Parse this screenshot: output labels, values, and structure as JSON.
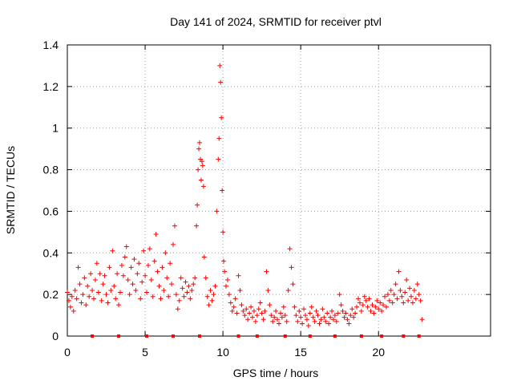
{
  "chart_data": {
    "type": "scatter",
    "title": "Day 141 of 2024, SRMTID for receiver ptvl",
    "xlabel": "GPS time / hours",
    "ylabel": "SRMTID / TECUs",
    "xlim": [
      0,
      27.2
    ],
    "ylim": [
      0,
      1.4
    ],
    "grid": true,
    "marker": "plus",
    "series_color": "#ff0000",
    "xticks": [
      0,
      5,
      10,
      15,
      20
    ],
    "yticks": [
      0,
      0.2,
      0.4,
      0.6,
      0.8,
      1,
      1.2,
      1.4
    ],
    "xtick_labels": [
      "0",
      "5",
      "10",
      "15",
      "20"
    ],
    "ytick_labels": [
      "0",
      "0.2",
      "0.4",
      "0.6",
      "0.8",
      "1",
      "1.2",
      "1.4"
    ],
    "series": [
      {
        "name": "SRMTID",
        "x": [
          0.0,
          0.1,
          0.2,
          0.3,
          0.4,
          0.5,
          0.6,
          0.7,
          0.8,
          0.9,
          1.0,
          1.1,
          1.2,
          1.3,
          1.4,
          1.5,
          1.6,
          1.7,
          1.8,
          1.9,
          2.0,
          2.1,
          2.2,
          2.3,
          2.4,
          2.5,
          2.6,
          2.7,
          2.8,
          2.9,
          3.0,
          3.1,
          3.2,
          3.3,
          3.4,
          3.5,
          3.6,
          3.7,
          3.8,
          3.9,
          4.0,
          4.1,
          4.2,
          4.3,
          4.4,
          4.5,
          4.6,
          4.7,
          4.8,
          4.9,
          5.0,
          5.1,
          5.2,
          5.3,
          5.4,
          5.5,
          5.6,
          5.7,
          5.8,
          5.9,
          6.0,
          6.1,
          6.2,
          6.3,
          6.4,
          6.5,
          6.6,
          6.7,
          6.8,
          6.9,
          7.0,
          7.1,
          7.2,
          7.3,
          7.4,
          7.5,
          7.6,
          7.7,
          7.8,
          7.9,
          8.0,
          8.1,
          8.2,
          8.3,
          8.35,
          8.4,
          8.45,
          8.5,
          8.55,
          8.6,
          8.65,
          8.7,
          8.75,
          8.8,
          8.9,
          9.0,
          9.1,
          9.2,
          9.3,
          9.4,
          9.5,
          9.6,
          9.7,
          9.75,
          9.8,
          9.85,
          9.9,
          9.95,
          10.0,
          10.05,
          10.1,
          10.2,
          10.3,
          10.4,
          10.5,
          10.6,
          10.7,
          10.8,
          10.9,
          11.0,
          11.1,
          11.2,
          11.3,
          11.4,
          11.5,
          11.6,
          11.7,
          11.8,
          11.9,
          12.0,
          12.1,
          12.2,
          12.3,
          12.4,
          12.5,
          12.6,
          12.7,
          12.8,
          12.9,
          13.0,
          13.1,
          13.2,
          13.3,
          13.4,
          13.5,
          13.6,
          13.7,
          13.8,
          13.9,
          14.0,
          14.1,
          14.2,
          14.3,
          14.4,
          14.5,
          14.6,
          14.7,
          14.8,
          14.9,
          15.0,
          15.1,
          15.2,
          15.3,
          15.4,
          15.5,
          15.6,
          15.7,
          15.8,
          15.9,
          16.0,
          16.1,
          16.2,
          16.3,
          16.4,
          16.5,
          16.6,
          16.7,
          16.8,
          16.9,
          17.0,
          17.1,
          17.2,
          17.3,
          17.4,
          17.5,
          17.6,
          17.7,
          17.8,
          17.9,
          18.0,
          18.1,
          18.2,
          18.3,
          18.4,
          18.5,
          18.6,
          18.7,
          18.8,
          18.9,
          19.0,
          19.1,
          19.2,
          19.3,
          19.4,
          19.5,
          19.6,
          19.7,
          19.8,
          19.9,
          20.0,
          20.1,
          20.2,
          20.3,
          20.4,
          20.5,
          20.6,
          20.7,
          20.8,
          20.9,
          21.0,
          21.1,
          21.2,
          21.3,
          21.4,
          21.5,
          21.6,
          21.7,
          21.8,
          21.9,
          22.0,
          22.1,
          22.2,
          22.3,
          22.4,
          22.5,
          22.6,
          22.7,
          22.8
        ],
        "y": [
          0.21,
          0.17,
          0.14,
          0.19,
          0.12,
          0.22,
          0.18,
          0.33,
          0.25,
          0.16,
          0.2,
          0.28,
          0.15,
          0.24,
          0.19,
          0.3,
          0.22,
          0.18,
          0.27,
          0.35,
          0.21,
          0.3,
          0.17,
          0.25,
          0.29,
          0.2,
          0.16,
          0.33,
          0.22,
          0.41,
          0.24,
          0.18,
          0.3,
          0.15,
          0.21,
          0.34,
          0.29,
          0.38,
          0.43,
          0.27,
          0.2,
          0.33,
          0.25,
          0.37,
          0.22,
          0.3,
          0.35,
          0.18,
          0.26,
          0.41,
          0.29,
          0.21,
          0.34,
          0.42,
          0.27,
          0.19,
          0.36,
          0.49,
          0.31,
          0.24,
          0.18,
          0.33,
          0.22,
          0.4,
          0.28,
          0.19,
          0.35,
          0.25,
          0.44,
          0.53,
          0.2,
          0.13,
          0.17,
          0.28,
          0.23,
          0.19,
          0.26,
          0.21,
          0.24,
          0.18,
          0.22,
          0.25,
          0.28,
          0.53,
          0.63,
          0.8,
          0.9,
          0.93,
          0.85,
          0.75,
          0.84,
          0.82,
          0.72,
          0.38,
          0.28,
          0.19,
          0.15,
          0.22,
          0.17,
          0.2,
          0.24,
          0.6,
          0.85,
          0.95,
          1.3,
          1.22,
          1.05,
          0.7,
          0.5,
          0.36,
          0.31,
          0.24,
          0.27,
          0.2,
          0.16,
          0.12,
          0.14,
          0.18,
          0.11,
          0.29,
          0.22,
          0.15,
          0.12,
          0.1,
          0.13,
          0.08,
          0.11,
          0.14,
          0.09,
          0.12,
          0.07,
          0.1,
          0.13,
          0.16,
          0.11,
          0.08,
          0.12,
          0.31,
          0.22,
          0.15,
          0.1,
          0.07,
          0.09,
          0.12,
          0.08,
          0.06,
          0.11,
          0.09,
          0.14,
          0.1,
          0.07,
          0.22,
          0.42,
          0.33,
          0.25,
          0.14,
          0.1,
          0.07,
          0.12,
          0.09,
          0.06,
          0.13,
          0.1,
          0.08,
          0.05,
          0.11,
          0.14,
          0.09,
          0.07,
          0.12,
          0.1,
          0.06,
          0.08,
          0.13,
          0.09,
          0.07,
          0.11,
          0.06,
          0.09,
          0.12,
          0.08,
          0.1,
          0.07,
          0.11,
          0.2,
          0.15,
          0.12,
          0.09,
          0.11,
          0.08,
          0.06,
          0.1,
          0.13,
          0.09,
          0.11,
          0.14,
          0.18,
          0.16,
          0.12,
          0.15,
          0.19,
          0.17,
          0.14,
          0.18,
          0.12,
          0.15,
          0.11,
          0.14,
          0.17,
          0.13,
          0.16,
          0.12,
          0.15,
          0.19,
          0.14,
          0.2,
          0.17,
          0.22,
          0.16,
          0.2,
          0.25,
          0.18,
          0.31,
          0.22,
          0.19,
          0.16,
          0.21,
          0.27,
          0.17,
          0.23,
          0.19,
          0.16,
          0.22,
          0.18,
          0.25,
          0.2,
          0.17,
          0.08
        ]
      }
    ],
    "rug_x": [
      1.6,
      3.3,
      5.1,
      6.8,
      8.5,
      11.0,
      12.2,
      14.0,
      15.6,
      17.2,
      18.9,
      20.2,
      21.6,
      22.6
    ]
  }
}
